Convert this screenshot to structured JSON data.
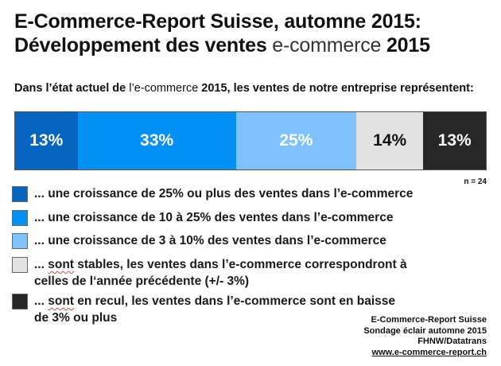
{
  "title": {
    "line1": "E-Commerce-Report Suisse, automne 2015:",
    "line2_prefix": "Développement des ventes ",
    "line2_highlight": "e-commerce",
    "line2_suffix": " 2015"
  },
  "subtitle": {
    "part1": "Dans l’état actuel de ",
    "part2": "l’e-commerce",
    "part3": " 2015, les ventes de notre entreprise représentent:"
  },
  "sample_size": "n = 24",
  "chart_data": {
    "type": "bar",
    "orientation": "horizontal-stacked-100",
    "title": "E-Commerce-Report Suisse, automne 2015: Développement des ventes e-commerce 2015",
    "subtitle": "Dans l’état actuel de l’e-commerce 2015, les ventes de notre entreprise représentent:",
    "categories": [
      "... une croissance de 25% ou plus des ventes dans l’e-commerce",
      "... une croissance de 10 à 25% des ventes dans l’e-commerce",
      "... une croissance de 3 à 10% des ventes dans l’e-commerce",
      "... sont stables, les ventes dans l’e-commerce correspondront à celles de l‘année précédente (+/- 3%)",
      "... sont en recul, les ventes dans l’e-commerce sont en baisse de 3% ou plus"
    ],
    "values": [
      13,
      33,
      25,
      14,
      13
    ],
    "labels": [
      "13%",
      "33%",
      "25%",
      "14%",
      "13%"
    ],
    "colors": [
      "#0565c0",
      "#0590f5",
      "#7dc2fd",
      "#e2e2e2",
      "#262626"
    ],
    "label_colors": [
      "#ffffff",
      "#ffffff",
      "#ffffff",
      "#111111",
      "#ffffff"
    ],
    "unit": "%",
    "n": 24,
    "legend_position": "bottom",
    "grid": false
  },
  "segments": [
    {
      "label": "13%",
      "value": 13,
      "color": "#0565c0",
      "text_color": "#ffffff"
    },
    {
      "label": "33%",
      "value": 33,
      "color": "#0590f5",
      "text_color": "#ffffff"
    },
    {
      "label": "25%",
      "value": 25,
      "color": "#7dc2fd",
      "text_color": "#ffffff"
    },
    {
      "label": "14%",
      "value": 14,
      "color": "#e2e2e2",
      "text_color": "#111111"
    },
    {
      "label": "13%",
      "value": 13,
      "color": "#262626",
      "text_color": "#ffffff"
    }
  ],
  "legend": [
    {
      "text": "... une croissance de 25% ou plus des ventes dans l’e-commerce",
      "color": "#0565c0"
    },
    {
      "text": "... une croissance de 10 à 25% des ventes dans l’e-commerce",
      "color": "#0590f5"
    },
    {
      "text": "... une croissance de 3 à 10% des ventes dans l’e-commerce",
      "color": "#7dc2fd"
    },
    {
      "prefix": "... ",
      "underlined": "sont",
      "text": " stables, les ventes dans l’e-commerce correspondront à celles de l‘année précédente (+/- 3%)",
      "color": "#e2e2e2"
    },
    {
      "prefix": "... ",
      "underlined": "sont",
      "text": " en recul, les ventes dans l’e-commerce sont en baisse de 3% ou plus",
      "color": "#262626"
    }
  ],
  "footer": {
    "line1": "E-Commerce-Report Suisse",
    "line2": "Sondage éclair automne 2015",
    "line3": "FHNW/Datatrans",
    "link": "www.e-commerce-report.ch"
  }
}
